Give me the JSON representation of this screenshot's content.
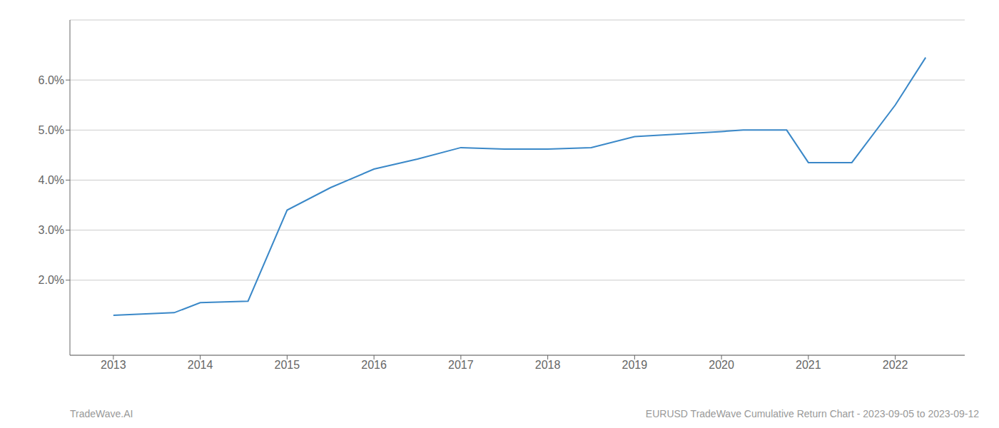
{
  "chart_data": {
    "type": "line",
    "x": [
      2013.0,
      2013.7,
      2014.0,
      2014.55,
      2015.0,
      2015.5,
      2016.0,
      2016.5,
      2017.0,
      2017.5,
      2018.0,
      2018.5,
      2019.0,
      2019.5,
      2020.0,
      2020.25,
      2020.75,
      2021.0,
      2021.5,
      2022.0,
      2022.35
    ],
    "values": [
      1.3,
      1.35,
      1.55,
      1.58,
      3.4,
      3.85,
      4.22,
      4.42,
      4.65,
      4.62,
      4.62,
      4.65,
      4.87,
      4.92,
      4.97,
      5.0,
      5.0,
      4.35,
      4.35,
      5.5,
      6.45
    ],
    "color": "#3a88c8",
    "xlim": [
      2012.5,
      2022.8
    ],
    "xticks": [
      2013,
      2014,
      2015,
      2016,
      2017,
      2018,
      2019,
      2020,
      2021,
      2022
    ],
    "ylim": [
      0.5,
      7.2
    ],
    "yticks": [
      {
        "value": 2.0,
        "label": "2.0%"
      },
      {
        "value": 3.0,
        "label": "3.0%"
      },
      {
        "value": 4.0,
        "label": "4.0%"
      },
      {
        "value": 5.0,
        "label": "5.0%"
      },
      {
        "value": 6.0,
        "label": "6.0%"
      }
    ],
    "grid": "y",
    "annotations": [
      "TradeWave.AI",
      "EURUSD TradeWave Cumulative Return Chart - 2023-09-05 to 2023-09-12"
    ]
  }
}
